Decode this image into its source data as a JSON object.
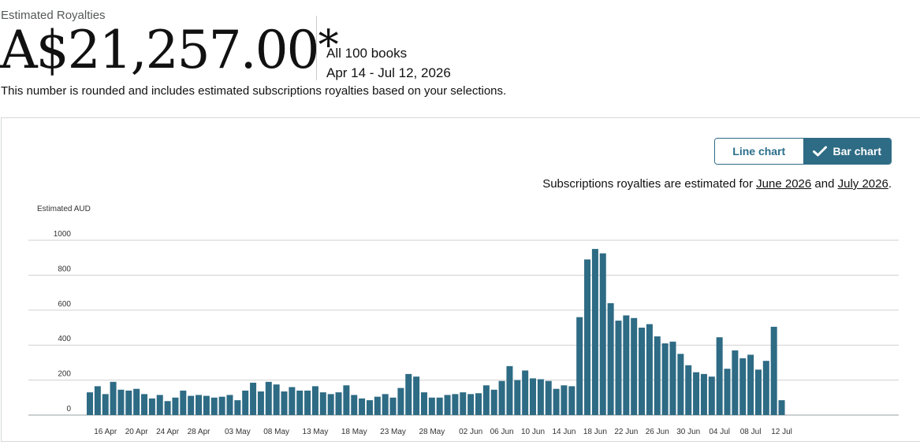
{
  "header": {
    "label": "Estimated Royalties",
    "amount": "A$21,257.00",
    "asterisk": "*",
    "scope_books": "All 100 books",
    "scope_dates": "Apr 14 - Jul 12, 2026",
    "note": "This number is rounded and includes estimated subscriptions royalties based on your selections."
  },
  "toggle": {
    "line_label": "Line chart",
    "bar_label": "Bar chart",
    "selected": "bar"
  },
  "subs_note": {
    "prefix": "Subscriptions royalties are estimated for ",
    "month1": "June 2026",
    "joiner": " and ",
    "month2": "July 2026",
    "suffix": "."
  },
  "colors": {
    "bar": "#2e6b84",
    "grid": "#d0d0d0",
    "accent": "#2e6b84"
  },
  "chart_data": {
    "type": "bar",
    "ylabel": "Estimated AUD",
    "ylim": [
      0,
      1000
    ],
    "yticks": [
      0,
      200,
      400,
      600,
      800,
      1000
    ],
    "grid": true,
    "start_date": "2026-04-14",
    "end_date": "2026-07-12",
    "x_tick_labels": [
      "16 Apr",
      "20 Apr",
      "24 Apr",
      "28 Apr",
      "03 May",
      "08 May",
      "13 May",
      "18 May",
      "23 May",
      "28 May",
      "02 Jun",
      "06 Jun",
      "10 Jun",
      "14 Jun",
      "18 Jun",
      "22 Jun",
      "26 Jun",
      "30 Jun",
      "04 Jul",
      "08 Jul",
      "12 Jul"
    ],
    "x_tick_dates": [
      "2026-04-16",
      "2026-04-20",
      "2026-04-24",
      "2026-04-28",
      "2026-05-03",
      "2026-05-08",
      "2026-05-13",
      "2026-05-18",
      "2026-05-23",
      "2026-05-28",
      "2026-06-02",
      "2026-06-06",
      "2026-06-10",
      "2026-06-14",
      "2026-06-18",
      "2026-06-22",
      "2026-06-26",
      "2026-06-30",
      "2026-07-04",
      "2026-07-08",
      "2026-07-12"
    ],
    "values": [
      130,
      165,
      120,
      190,
      145,
      140,
      150,
      120,
      95,
      115,
      80,
      100,
      140,
      110,
      115,
      110,
      100,
      105,
      115,
      85,
      140,
      185,
      135,
      190,
      175,
      135,
      160,
      140,
      140,
      165,
      130,
      120,
      130,
      170,
      115,
      95,
      85,
      105,
      120,
      100,
      155,
      235,
      220,
      130,
      100,
      100,
      115,
      120,
      130,
      120,
      125,
      170,
      145,
      195,
      280,
      200,
      255,
      210,
      205,
      195,
      150,
      170,
      165,
      560,
      890,
      950,
      925,
      640,
      540,
      570,
      555,
      500,
      520,
      450,
      410,
      420,
      350,
      285,
      245,
      235,
      220,
      445,
      265,
      370,
      325,
      345,
      260,
      310,
      505,
      85
    ]
  }
}
